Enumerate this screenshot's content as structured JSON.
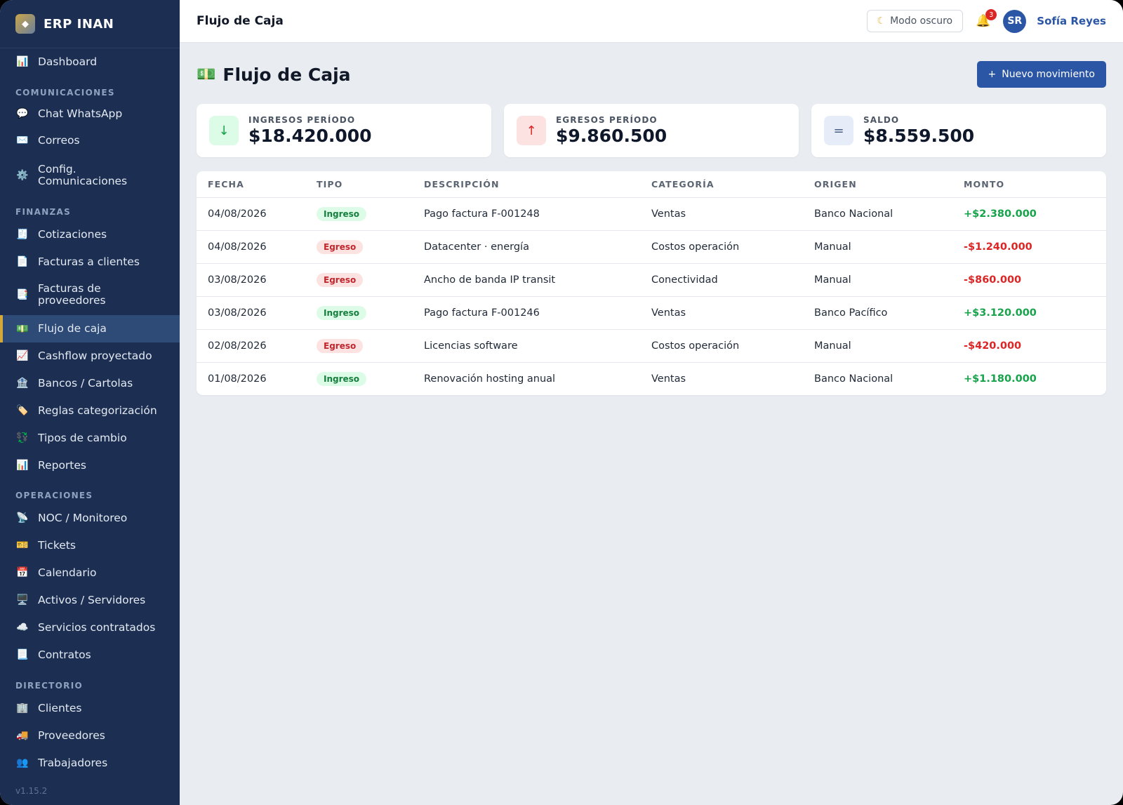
{
  "app": {
    "name": "ERP INAN",
    "version": "v1.15.2"
  },
  "sidebar": {
    "items": [
      {
        "label": "Dashboard",
        "icon": "📊"
      },
      {
        "label": "Chat WhatsApp",
        "icon": "💬"
      },
      {
        "label": "Correos",
        "icon": "✉️"
      },
      {
        "label": "Config. Comunicaciones",
        "icon": "⚙️"
      },
      {
        "label": "Cotizaciones",
        "icon": "🧾"
      },
      {
        "label": "Facturas a clientes",
        "icon": "📄"
      },
      {
        "label": "Facturas de proveedores",
        "icon": "📑"
      },
      {
        "label": "Flujo de caja",
        "icon": "💵"
      },
      {
        "label": "Cashflow proyectado",
        "icon": "📈"
      },
      {
        "label": "Bancos / Cartolas",
        "icon": "🏦"
      },
      {
        "label": "Reglas categorización",
        "icon": "🏷️"
      },
      {
        "label": "Tipos de cambio",
        "icon": "💱"
      },
      {
        "label": "Reportes",
        "icon": "📊"
      },
      {
        "label": "NOC / Monitoreo",
        "icon": "📡"
      },
      {
        "label": "Tickets",
        "icon": "🎫"
      },
      {
        "label": "Calendario",
        "icon": "📅"
      },
      {
        "label": "Activos / Servidores",
        "icon": "🖥️"
      },
      {
        "label": "Servicios contratados",
        "icon": "☁️"
      },
      {
        "label": "Contratos",
        "icon": "📃"
      },
      {
        "label": "Clientes",
        "icon": "🏢"
      },
      {
        "label": "Proveedores",
        "icon": "🚚"
      },
      {
        "label": "Trabajadores",
        "icon": "👥"
      }
    ],
    "sections": [
      "COMUNICACIONES",
      "FINANZAS",
      "OPERACIONES",
      "DIRECTORIO"
    ]
  },
  "topbar": {
    "title": "Flujo de Caja",
    "dark_mode_label": "Modo oscuro",
    "notification_count": "3",
    "avatar_initials": "SR",
    "user_name": "Sofía Reyes"
  },
  "page": {
    "icon": "💵",
    "title": "Flujo de Caja",
    "new_button_label": "Nuevo movimiento",
    "new_button_icon": "+"
  },
  "summary": [
    {
      "label": "INGRESOS PERÍODO",
      "value": "$18.420.000",
      "icon": "↓"
    },
    {
      "label": "EGRESOS PERÍODO",
      "value": "$9.860.500",
      "icon": "↑"
    },
    {
      "label": "SALDO",
      "value": "$8.559.500",
      "icon": "="
    }
  ],
  "table": {
    "headers": [
      "FECHA",
      "TIPO",
      "DESCRIPCIÓN",
      "CATEGORÍA",
      "ORIGEN",
      "MONTO"
    ],
    "rows": [
      {
        "fecha": "04/08/2026",
        "tipo": "Ingreso",
        "descripcion": "Pago factura F-001248",
        "categoria": "Ventas",
        "origen": "Banco Nacional",
        "monto": "+$2.380.000"
      },
      {
        "fecha": "04/08/2026",
        "tipo": "Egreso",
        "descripcion": "Datacenter · energía",
        "categoria": "Costos operación",
        "origen": "Manual",
        "monto": "-$1.240.000"
      },
      {
        "fecha": "03/08/2026",
        "tipo": "Egreso",
        "descripcion": "Ancho de banda IP transit",
        "categoria": "Conectividad",
        "origen": "Manual",
        "monto": "-$860.000"
      },
      {
        "fecha": "03/08/2026",
        "tipo": "Ingreso",
        "descripcion": "Pago factura F-001246",
        "categoria": "Ventas",
        "origen": "Banco Pacífico",
        "monto": "+$3.120.000"
      },
      {
        "fecha": "02/08/2026",
        "tipo": "Egreso",
        "descripcion": "Licencias software",
        "categoria": "Costos operación",
        "origen": "Manual",
        "monto": "-$420.000"
      },
      {
        "fecha": "01/08/2026",
        "tipo": "Ingreso",
        "descripcion": "Renovación hosting anual",
        "categoria": "Ventas",
        "origen": "Banco Nacional",
        "monto": "+$1.180.000"
      }
    ]
  },
  "colors": {
    "sidebar": "#1c2f52",
    "accent": "#2b56a6",
    "active_border": "#d4a93a",
    "positive": "#16a34a",
    "negative": "#dc2626"
  }
}
